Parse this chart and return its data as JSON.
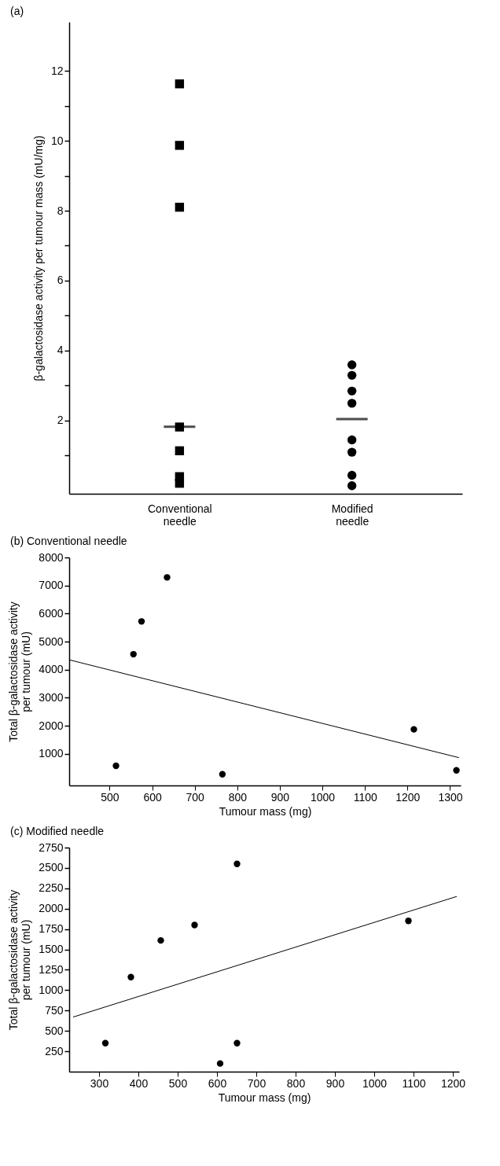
{
  "chart_data": [
    {
      "type": "scatter",
      "title": "(a)",
      "ylabel": "β-galactosidase activity per tumour mass (mU/mg)",
      "categories": [
        "Conventional needle",
        "Modified needle"
      ],
      "ylim": [
        -0.1,
        13.4
      ],
      "yticks": [
        {
          "value": 1,
          "label": null
        },
        2,
        {
          "value": 3,
          "label": null
        },
        4,
        {
          "value": 5,
          "label": null
        },
        6,
        {
          "value": 7,
          "label": null
        },
        8,
        {
          "value": 9,
          "label": null
        },
        10,
        {
          "value": 11,
          "label": null
        },
        12
      ],
      "series": [
        {
          "type": "scatter",
          "marker": "square",
          "color": "#000000",
          "x": [
            "Conventional needle",
            "Conventional needle",
            "Conventional needle",
            "Conventional needle",
            "Conventional needle",
            "Conventional needle",
            "Conventional needle"
          ],
          "values": [
            11.63,
            9.87,
            8.1,
            1.81,
            1.13,
            0.39,
            0.2
          ]
        },
        {
          "type": "scatter",
          "marker": "circle",
          "color": "#000000",
          "x": [
            "Modified needle",
            "Modified needle",
            "Modified needle",
            "Modified needle",
            "Modified needle",
            "Modified needle",
            "Modified needle",
            "Modified needle"
          ],
          "values": [
            3.59,
            3.29,
            2.84,
            2.49,
            1.44,
            1.09,
            0.43,
            0.13
          ]
        },
        {
          "type": "box",
          "color": "#000000",
          "boxes": [
            {
              "q1": 1.82,
              "median": 1.82,
              "q3": 1.82
            },
            {
              "q1": 2.04,
              "median": 2.04,
              "q3": 2.04
            }
          ]
        }
      ]
    },
    {
      "type": "scatter",
      "title": "(b) Conventional needle",
      "xlabel": "Tumour mass (mg)",
      "ylabel": "Total β-galactosidase activity\nper tumour (mU)",
      "xlim": [
        405,
        1325
      ],
      "xticks": [
        500,
        600,
        700,
        800,
        900,
        1000,
        1100,
        1200,
        1300
      ],
      "ylim": [
        -130,
        8000
      ],
      "yticks": [
        1000,
        2000,
        3000,
        4000,
        5000,
        6000,
        7000,
        8000
      ],
      "series": [
        {
          "type": "scatter",
          "marker": "circle",
          "color": "#000000",
          "x": [
            515,
            556,
            575,
            635,
            765,
            1215,
            1315
          ],
          "values": [
            570,
            4550,
            5720,
            7290,
            270,
            1870,
            410
          ]
        },
        {
          "type": "line",
          "marker": "none",
          "line_style": "solid",
          "color": "#000000",
          "x": [
            405,
            1321
          ],
          "values": [
            4350,
            860
          ]
        }
      ]
    },
    {
      "type": "scatter",
      "title": "(c) Modified needle",
      "xlabel": "Tumour mass (mg)",
      "ylabel": "Total β-galactosidase activity\nper tumour (mU)",
      "xlim": [
        224,
        1216
      ],
      "xticks": [
        300,
        400,
        500,
        600,
        700,
        800,
        900,
        1000,
        1100,
        1200
      ],
      "ylim": [
        0,
        2750
      ],
      "yticks": [
        250,
        500,
        750,
        1000,
        1250,
        1500,
        1750,
        2000,
        2250,
        2500,
        2750
      ],
      "series": [
        {
          "type": "scatter",
          "marker": "circle",
          "color": "#000000",
          "x": [
            316,
            381,
            457,
            543,
            651,
            651,
            608,
            1087
          ],
          "values": [
            350,
            1160,
            1610,
            1800,
            2550,
            350,
            100,
            1850
          ]
        },
        {
          "type": "line",
          "marker": "none",
          "line_style": "solid",
          "color": "#000000",
          "x": [
            234,
            1210
          ],
          "values": [
            670,
            2150
          ]
        }
      ]
    }
  ]
}
